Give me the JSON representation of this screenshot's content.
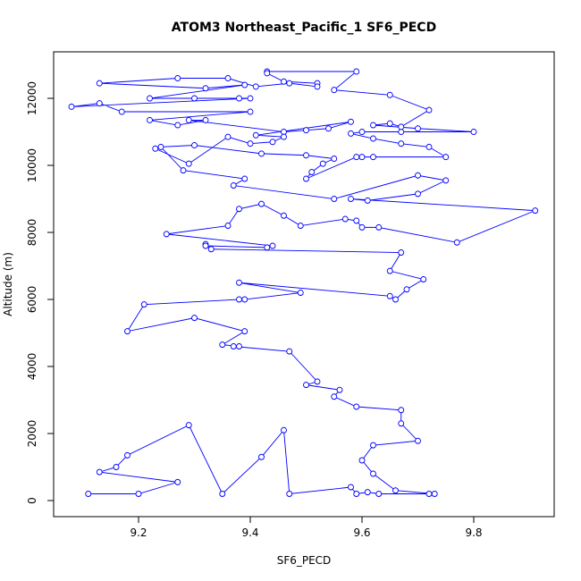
{
  "chart_data": {
    "type": "line",
    "title": "ATOM3 Northeast_Pacific_1 SF6_PECD",
    "x_label": "SF6_PECD",
    "y_label": "Altitude (m)",
    "color": "#0000ff",
    "xlim": [
      9.048,
      9.944
    ],
    "ylim": [
      -480,
      13387
    ],
    "xticks": [
      9.2,
      9.4,
      9.6,
      9.8
    ],
    "yticks": [
      0,
      2000,
      4000,
      6000,
      8000,
      10000,
      12000
    ],
    "x": [
      9.11,
      9.2,
      9.27,
      9.13,
      9.16,
      9.18,
      9.29,
      9.35,
      9.42,
      9.46,
      9.47,
      9.58,
      9.59,
      9.61,
      9.63,
      9.72,
      9.73,
      9.66,
      9.62,
      9.6,
      9.62,
      9.7,
      9.67,
      9.67,
      9.59,
      9.55,
      9.56,
      9.5,
      9.52,
      9.47,
      9.37,
      9.38,
      9.35,
      9.39,
      9.3,
      9.18,
      9.21,
      9.38,
      9.39,
      9.49,
      9.38,
      9.65,
      9.66,
      9.68,
      9.71,
      9.65,
      9.67,
      9.33,
      9.32,
      9.32,
      9.43,
      9.44,
      9.25,
      9.36,
      9.38,
      9.42,
      9.46,
      9.49,
      9.57,
      9.59,
      9.6,
      9.63,
      9.77,
      9.91,
      9.58,
      9.61,
      9.7,
      9.75,
      9.7,
      9.55,
      9.37,
      9.39,
      9.28,
      9.24,
      9.3,
      9.42,
      9.5,
      9.55,
      9.53,
      9.51,
      9.5,
      9.59,
      9.6,
      9.62,
      9.75,
      9.72,
      9.67,
      9.62,
      9.58,
      9.6,
      9.67,
      9.8,
      9.7,
      9.62,
      9.65,
      9.67,
      9.72,
      9.65,
      9.55,
      9.59,
      9.43,
      9.43,
      9.46,
      9.52,
      9.52,
      9.47,
      9.41,
      9.36,
      9.27,
      9.13,
      9.32,
      9.39,
      9.22,
      9.3,
      9.38,
      9.4,
      9.08,
      9.13,
      9.17,
      9.4,
      9.22,
      9.27,
      9.32,
      9.29,
      9.46,
      9.5,
      9.54,
      9.58,
      9.41,
      9.46,
      9.44,
      9.4,
      9.36,
      9.29,
      9.23
    ],
    "values": [
      200,
      200,
      550,
      850,
      1000,
      1350,
      2250,
      200,
      1300,
      2100,
      200,
      400,
      200,
      250,
      200,
      200,
      200,
      300,
      800,
      1200,
      1650,
      1780,
      2300,
      2700,
      2800,
      3100,
      3300,
      3450,
      3550,
      4450,
      4600,
      4600,
      4650,
      5050,
      5450,
      5050,
      5850,
      6000,
      6000,
      6200,
      6500,
      6100,
      6000,
      6300,
      6600,
      6850,
      7400,
      7500,
      7650,
      7600,
      7550,
      7600,
      7950,
      8200,
      8700,
      8850,
      8500,
      8200,
      8400,
      8350,
      8150,
      8150,
      7700,
      8650,
      9000,
      8950,
      9150,
      9550,
      9700,
      9000,
      9400,
      9600,
      9850,
      10550,
      10600,
      10350,
      10300,
      10200,
      10050,
      9800,
      9600,
      10250,
      10250,
      10250,
      10250,
      10550,
      10650,
      10800,
      10950,
      11000,
      11000,
      11000,
      11100,
      11200,
      11250,
      11150,
      11650,
      12100,
      12250,
      12800,
      12800,
      12750,
      12500,
      12450,
      12350,
      12450,
      12350,
      12600,
      12600,
      12450,
      12300,
      12400,
      12000,
      12000,
      12000,
      12000,
      11750,
      11850,
      11600,
      11600,
      11350,
      11200,
      11350,
      11350,
      11000,
      11050,
      11100,
      11300,
      10900,
      10850,
      10700,
      10650,
      10850,
      10050,
      10500
    ]
  }
}
